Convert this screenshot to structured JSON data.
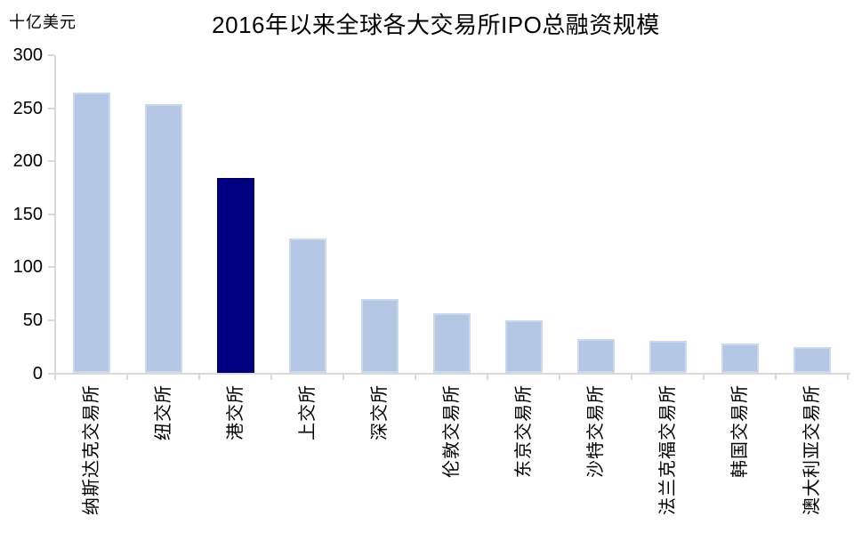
{
  "chart_data": {
    "type": "bar",
    "title": "2016年以来全球各大交易所IPO总融资规模",
    "ylabel": "十亿美元",
    "xlabel": "",
    "categories": [
      "纳斯达克交易所",
      "纽交所",
      "港交所",
      "上交所",
      "深交所",
      "伦敦交易所",
      "东京交易所",
      "沙特交易所",
      "法兰克福交易所",
      "韩国交易所",
      "澳大利亚交易所"
    ],
    "values": [
      265,
      254,
      184,
      127,
      70,
      57,
      50,
      32,
      31,
      28,
      25
    ],
    "highlight_category": "港交所",
    "highlight_index": 2,
    "ylim": [
      0,
      300
    ],
    "yticks": [
      0,
      50,
      100,
      150,
      200,
      250,
      300
    ],
    "grid": false,
    "legend": "none",
    "x_labels_rotation_deg": -90,
    "colors": {
      "bar": "#b4c7e4",
      "bar_border": "#ccd8ec",
      "highlight": "#000080",
      "highlight_border": "#000066",
      "axis": "#d9d9d9",
      "text": "#000000",
      "background": "#ffffff"
    }
  }
}
